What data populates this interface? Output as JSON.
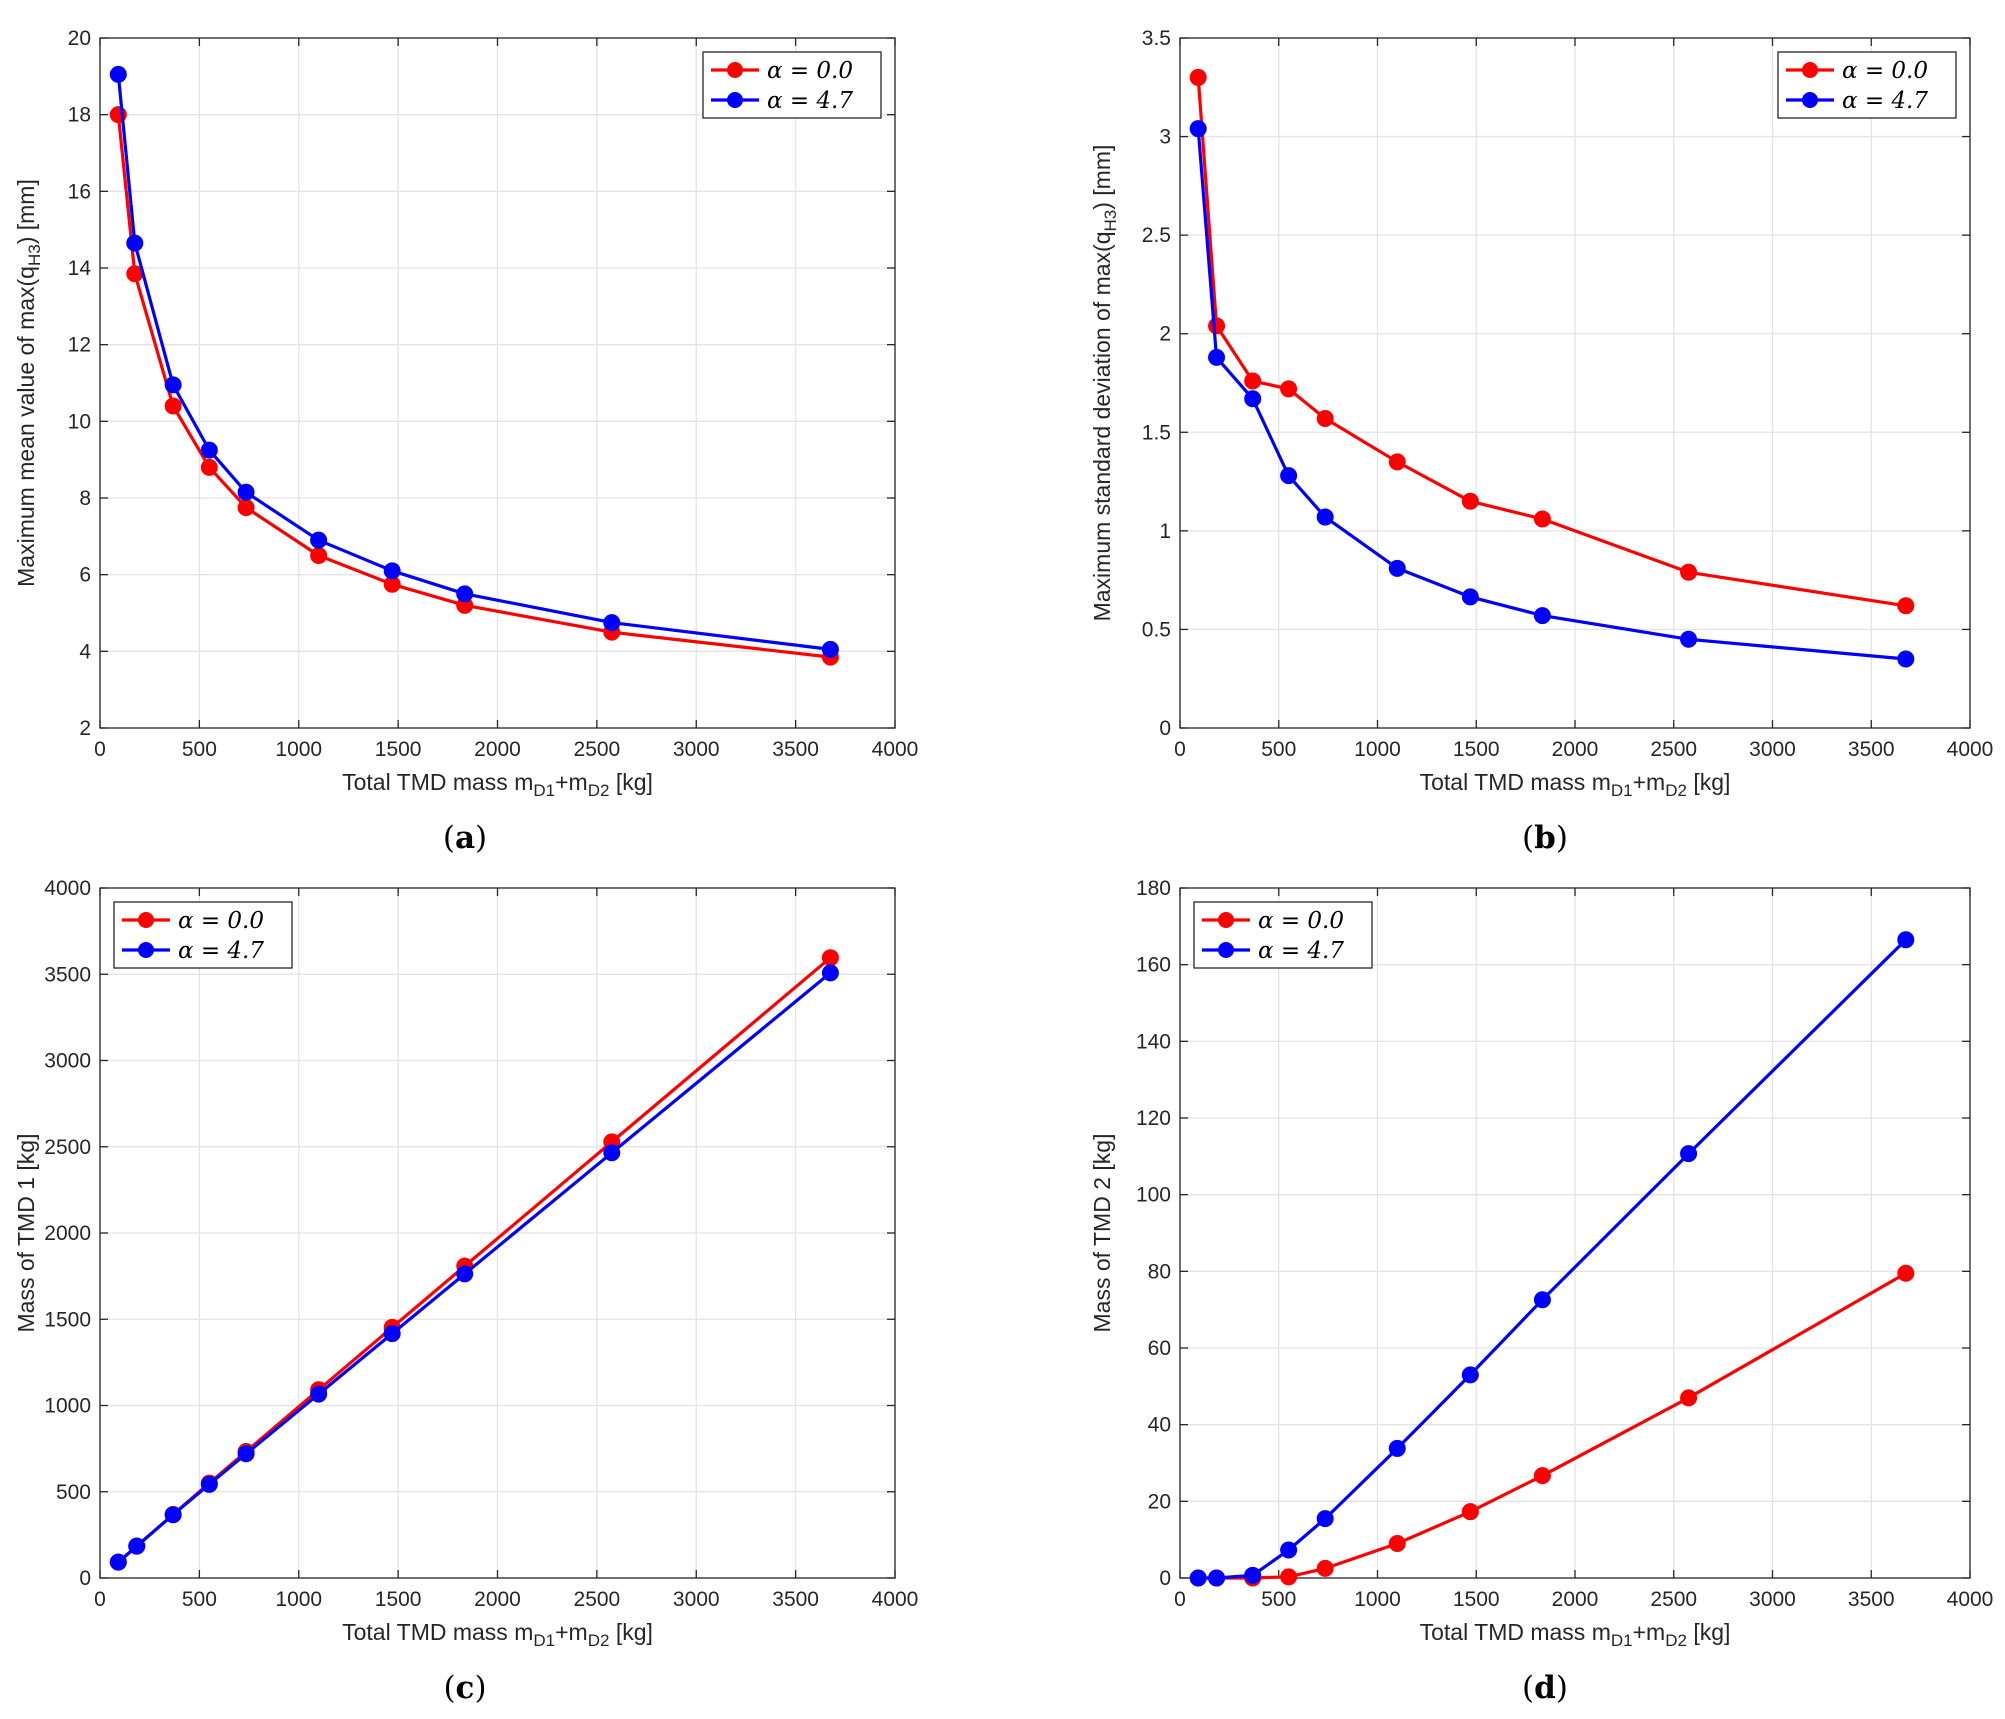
{
  "chart_data": [
    {
      "type": "line",
      "panel_label": "(a)",
      "panel_letter": "a",
      "xlabel": "Total TMD mass m_{D1}+m_{D2} [kg]",
      "xlabel_parts": [
        "Total TMD mass m",
        "D1",
        "+m",
        "D2",
        " [kg]"
      ],
      "ylabel": "Maximum mean value of max(q_{H3}) [mm]",
      "ylabel_parts": [
        "Maximum mean value of max(q",
        "H3",
        ") [mm]"
      ],
      "xlim": [
        0,
        4000
      ],
      "ylim": [
        2,
        20
      ],
      "xticks": [
        0,
        500,
        1000,
        1500,
        2000,
        2500,
        3000,
        3500,
        4000
      ],
      "yticks": [
        2,
        4,
        6,
        8,
        10,
        12,
        14,
        16,
        18,
        20
      ],
      "ytick_labels": [
        "2",
        "4",
        "6",
        "8",
        "10",
        "12",
        "14",
        "16",
        "18",
        "20"
      ],
      "grid": true,
      "legend_position": "top-right",
      "series": [
        {
          "name": "α = 0.0",
          "color": "#ff0000",
          "x": [
            92,
            175,
            368,
            550,
            735,
            1100,
            1470,
            1835,
            2575,
            3675
          ],
          "y": [
            18.0,
            13.85,
            10.4,
            8.8,
            7.75,
            6.5,
            5.75,
            5.2,
            4.5,
            3.85
          ]
        },
        {
          "name": "α = 4.7",
          "color": "#0000ff",
          "x": [
            92,
            175,
            368,
            550,
            735,
            1100,
            1470,
            1835,
            2575,
            3675
          ],
          "y": [
            19.05,
            14.65,
            10.95,
            9.25,
            8.15,
            6.9,
            6.1,
            5.5,
            4.75,
            4.05
          ]
        }
      ]
    },
    {
      "type": "line",
      "panel_label": "(b)",
      "panel_letter": "b",
      "xlabel": "Total TMD mass m_{D1}+m_{D2} [kg]",
      "xlabel_parts": [
        "Total TMD mass m",
        "D1",
        "+m",
        "D2",
        " [kg]"
      ],
      "ylabel": "Maximum standard deviation of max(q_{H3}) [mm]",
      "ylabel_parts": [
        "Maximum standard deviation of max(q",
        "H3",
        ") [mm]"
      ],
      "xlim": [
        0,
        4000
      ],
      "ylim": [
        0,
        3.5
      ],
      "xticks": [
        0,
        500,
        1000,
        1500,
        2000,
        2500,
        3000,
        3500,
        4000
      ],
      "yticks": [
        0,
        0.5,
        1,
        1.5,
        2,
        2.5,
        3,
        3.5
      ],
      "ytick_labels": [
        "0",
        "0.5",
        "1",
        "1.5",
        "2",
        "2.5",
        "3",
        "3.5"
      ],
      "grid": true,
      "legend_position": "top-right",
      "series": [
        {
          "name": "α = 0.0",
          "color": "#ff0000",
          "x": [
            92,
            185,
            368,
            550,
            735,
            1100,
            1470,
            1835,
            2575,
            3675
          ],
          "y": [
            3.3,
            2.04,
            1.76,
            1.72,
            1.57,
            1.35,
            1.15,
            1.06,
            0.79,
            0.62
          ]
        },
        {
          "name": "α = 4.7",
          "color": "#0000ff",
          "x": [
            92,
            185,
            368,
            550,
            735,
            1100,
            1470,
            1835,
            2575,
            3675
          ],
          "y": [
            3.04,
            1.88,
            1.67,
            1.28,
            1.07,
            0.81,
            0.665,
            0.57,
            0.45,
            0.35
          ]
        }
      ]
    },
    {
      "type": "line",
      "panel_label": "(c)",
      "panel_letter": "c",
      "xlabel": "Total TMD mass m_{D1}+m_{D2} [kg]",
      "xlabel_parts": [
        "Total TMD mass m",
        "D1",
        "+m",
        "D2",
        " [kg]"
      ],
      "ylabel": "Mass of TMD 1 [kg]",
      "ylabel_parts": [
        "Mass of TMD 1 [kg]",
        "",
        ""
      ],
      "xlim": [
        0,
        4000
      ],
      "ylim": [
        0,
        4000
      ],
      "xticks": [
        0,
        500,
        1000,
        1500,
        2000,
        2500,
        3000,
        3500,
        4000
      ],
      "yticks": [
        0,
        500,
        1000,
        1500,
        2000,
        2500,
        3000,
        3500,
        4000
      ],
      "ytick_labels": [
        "0",
        "500",
        "1000",
        "1500",
        "2000",
        "2500",
        "3000",
        "3500",
        "4000"
      ],
      "grid": true,
      "legend_position": "top-left",
      "series": [
        {
          "name": "α = 0.0",
          "color": "#ff0000",
          "x": [
            92,
            185,
            368,
            550,
            735,
            1100,
            1470,
            1835,
            2575,
            3675
          ],
          "y": [
            92,
            185,
            368,
            550,
            733,
            1091,
            1453,
            1808,
            2528,
            3596
          ]
        },
        {
          "name": "α = 4.7",
          "color": "#0000ff",
          "x": [
            92,
            185,
            368,
            550,
            735,
            1100,
            1470,
            1835,
            2575,
            3675
          ],
          "y": [
            92,
            185,
            367,
            543,
            720,
            1066,
            1417,
            1763,
            2465,
            3508
          ]
        }
      ]
    },
    {
      "type": "line",
      "panel_label": "(d)",
      "panel_letter": "d",
      "xlabel": "Total TMD mass m_{D1}+m_{D2} [kg]",
      "xlabel_parts": [
        "Total TMD mass m",
        "D1",
        "+m",
        "D2",
        " [kg]"
      ],
      "ylabel": "Mass of TMD 2 [kg]",
      "ylabel_parts": [
        "Mass of TMD 2 [kg]",
        "",
        ""
      ],
      "xlim": [
        0,
        4000
      ],
      "ylim": [
        0,
        180
      ],
      "xticks": [
        0,
        500,
        1000,
        1500,
        2000,
        2500,
        3000,
        3500,
        4000
      ],
      "yticks": [
        0,
        20,
        40,
        60,
        80,
        100,
        120,
        140,
        160,
        180
      ],
      "ytick_labels": [
        "0",
        "20",
        "40",
        "60",
        "80",
        "100",
        "120",
        "140",
        "160",
        "180"
      ],
      "grid": true,
      "legend_position": "top-left",
      "series": [
        {
          "name": "α = 0.0",
          "color": "#ff0000",
          "x": [
            92,
            185,
            368,
            550,
            735,
            1100,
            1470,
            1835,
            2575,
            3675
          ],
          "y": [
            0,
            0,
            0,
            0.3,
            2.5,
            9,
            17.3,
            26.7,
            47,
            79.5
          ]
        },
        {
          "name": "α = 4.7",
          "color": "#0000ff",
          "x": [
            92,
            185,
            368,
            550,
            735,
            1100,
            1470,
            1835,
            2575,
            3675
          ],
          "y": [
            0,
            0,
            0.7,
            7.3,
            15.5,
            33.8,
            53,
            72.6,
            110.7,
            166.5
          ]
        }
      ]
    }
  ]
}
